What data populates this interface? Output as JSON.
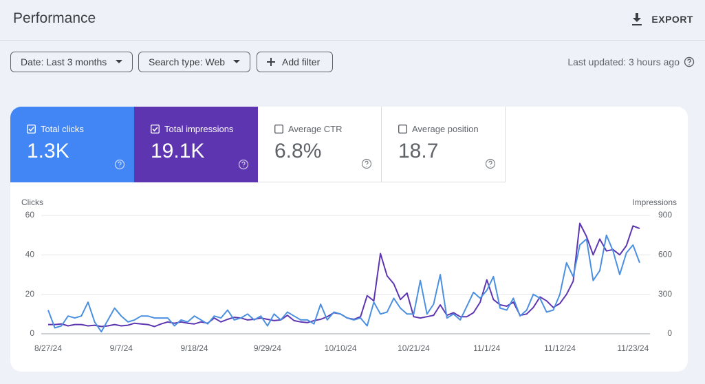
{
  "header": {
    "title": "Performance",
    "export": "EXPORT"
  },
  "filters": [
    "Date: Last 3 months",
    "Search type: Web",
    "Add filter"
  ],
  "last_updated": "Last updated: 3 hours ago",
  "metrics": [
    {
      "label": "Total clicks",
      "value": "1.3K",
      "checked": true,
      "color": "#4285f4"
    },
    {
      "label": "Total impressions",
      "value": "19.1K",
      "checked": true,
      "color": "#5e35b1"
    },
    {
      "label": "Average CTR",
      "value": "6.8%",
      "checked": false,
      "color": "#ffffff"
    },
    {
      "label": "Average position",
      "value": "18.7",
      "checked": false,
      "color": "#ffffff"
    }
  ],
  "chart_data": {
    "type": "line",
    "ylabel": "Clicks",
    "y2label": "Impressions",
    "categories": [
      "8/27/24",
      null,
      null,
      null,
      null,
      null,
      null,
      null,
      null,
      null,
      null,
      "9/7/24",
      null,
      null,
      null,
      null,
      null,
      null,
      null,
      null,
      null,
      null,
      "9/18/24",
      null,
      null,
      null,
      null,
      null,
      null,
      null,
      null,
      null,
      null,
      "9/29/24",
      null,
      null,
      null,
      null,
      null,
      null,
      null,
      null,
      null,
      null,
      "10/10/24",
      null,
      null,
      null,
      null,
      null,
      null,
      null,
      null,
      null,
      null,
      "10/21/24",
      null,
      null,
      null,
      null,
      null,
      null,
      null,
      null,
      null,
      null,
      "11/1/24",
      null,
      null,
      null,
      null,
      null,
      null,
      null,
      null,
      null,
      null,
      "11/12/24",
      null,
      null,
      null,
      null,
      null,
      null,
      null,
      null,
      null,
      null,
      "11/23/24",
      null
    ],
    "series": [
      {
        "color": "#4a8fe0",
        "axis": "y",
        "values": [
          12,
          3,
          4,
          9,
          8,
          9,
          16,
          6,
          1,
          7,
          13,
          9,
          6,
          7,
          9,
          9,
          8,
          8,
          8,
          4,
          7,
          6,
          9,
          7,
          5,
          9,
          8,
          12,
          7,
          8,
          10,
          7,
          9,
          4,
          10,
          7,
          11,
          9,
          7,
          7,
          5,
          15,
          7,
          11,
          10,
          8,
          7,
          8,
          4,
          16,
          10,
          11,
          18,
          13,
          10,
          10,
          27,
          10,
          15,
          30,
          8,
          10,
          7,
          14,
          21,
          18,
          22,
          29,
          13,
          12,
          18,
          9,
          12,
          20,
          18,
          11,
          12,
          20,
          36,
          29,
          45,
          48,
          27,
          32,
          50,
          42,
          30,
          41,
          45,
          36
        ]
      },
      {
        "color": "#5e35b1",
        "axis": "y2",
        "values": [
          70,
          70,
          75,
          60,
          70,
          70,
          60,
          65,
          55,
          60,
          70,
          60,
          65,
          80,
          75,
          70,
          55,
          75,
          90,
          80,
          90,
          80,
          75,
          90,
          80,
          120,
          90,
          110,
          125,
          120,
          105,
          110,
          120,
          110,
          100,
          105,
          140,
          100,
          90,
          85,
          100,
          110,
          130,
          160,
          150,
          120,
          110,
          130,
          290,
          250,
          610,
          440,
          380,
          260,
          310,
          130,
          120,
          130,
          140,
          220,
          140,
          160,
          130,
          130,
          160,
          240,
          410,
          260,
          220,
          210,
          240,
          140,
          150,
          200,
          280,
          250,
          200,
          230,
          300,
          400,
          840,
          740,
          600,
          720,
          630,
          640,
          600,
          670,
          820,
          800
        ]
      }
    ],
    "ylim": [
      0,
      60
    ],
    "yticks": [
      0,
      20,
      40,
      60
    ],
    "y2lim": [
      0,
      900
    ],
    "y2ticks": [
      0,
      300,
      600,
      900
    ],
    "grid": true
  }
}
